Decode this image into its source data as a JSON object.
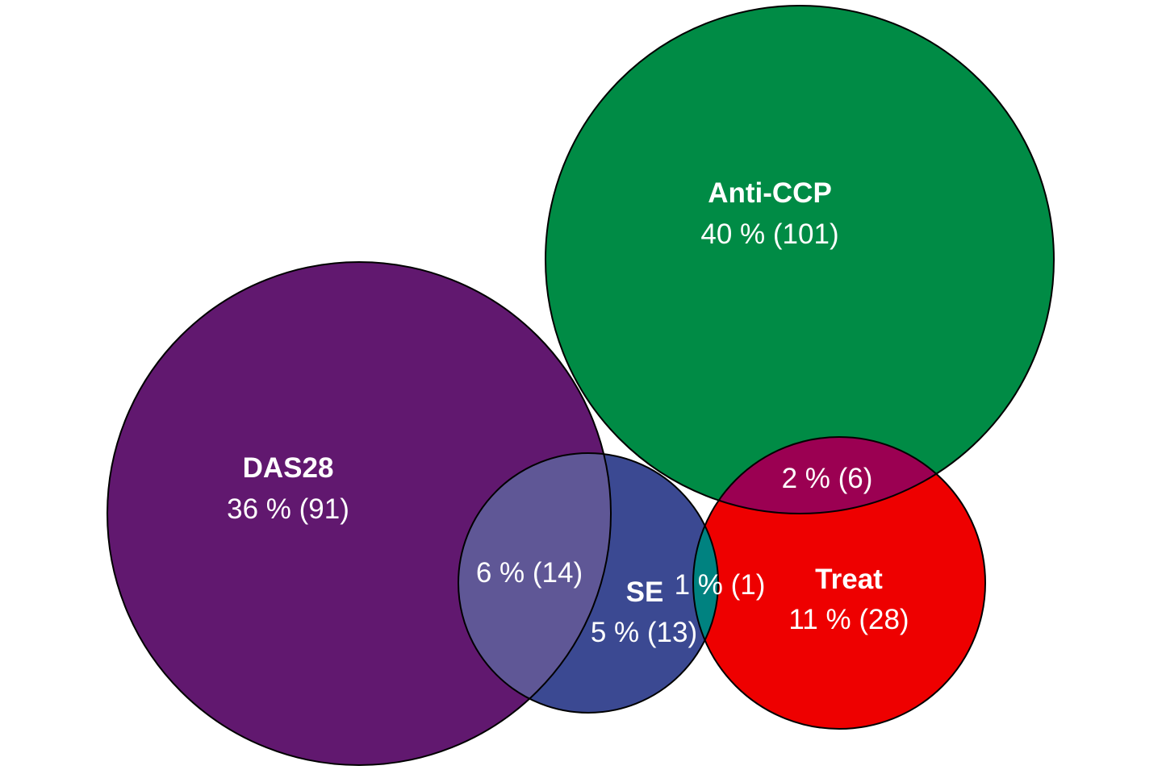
{
  "diagram_data": {
    "type": "euler",
    "sets": [
      {
        "key": "das28",
        "name": "DAS28",
        "label": "36 % (91)",
        "percent": 36,
        "count": 91,
        "color": "#61186f"
      },
      {
        "key": "anticcp",
        "name": "Anti-CCP",
        "label": "40 % (101)",
        "percent": 40,
        "count": 101,
        "color": "#008b45"
      },
      {
        "key": "se",
        "name": "SE",
        "label": "5 % (13)",
        "percent": 5,
        "count": 13,
        "color": "#3b4992"
      },
      {
        "key": "treat",
        "name": "Treat",
        "label": "11 % (28)",
        "percent": 11,
        "count": 28,
        "color": "#ee0000"
      }
    ],
    "intersections": [
      {
        "key": "das28_se",
        "sets": [
          "DAS28",
          "SE"
        ],
        "label": "6 % (14)",
        "percent": 6,
        "count": 14,
        "color": "#5f5796"
      },
      {
        "key": "anticcp_treat",
        "sets": [
          "Anti-CCP",
          "Treat"
        ],
        "label": "2 % (6)",
        "percent": 2,
        "count": 6,
        "color": "#9b0052"
      },
      {
        "key": "se_treat",
        "sets": [
          "SE",
          "Treat"
        ],
        "label": "1 % (1)",
        "percent": 1,
        "count": 1,
        "color": "#008280"
      }
    ],
    "outline_color": "#000000"
  }
}
